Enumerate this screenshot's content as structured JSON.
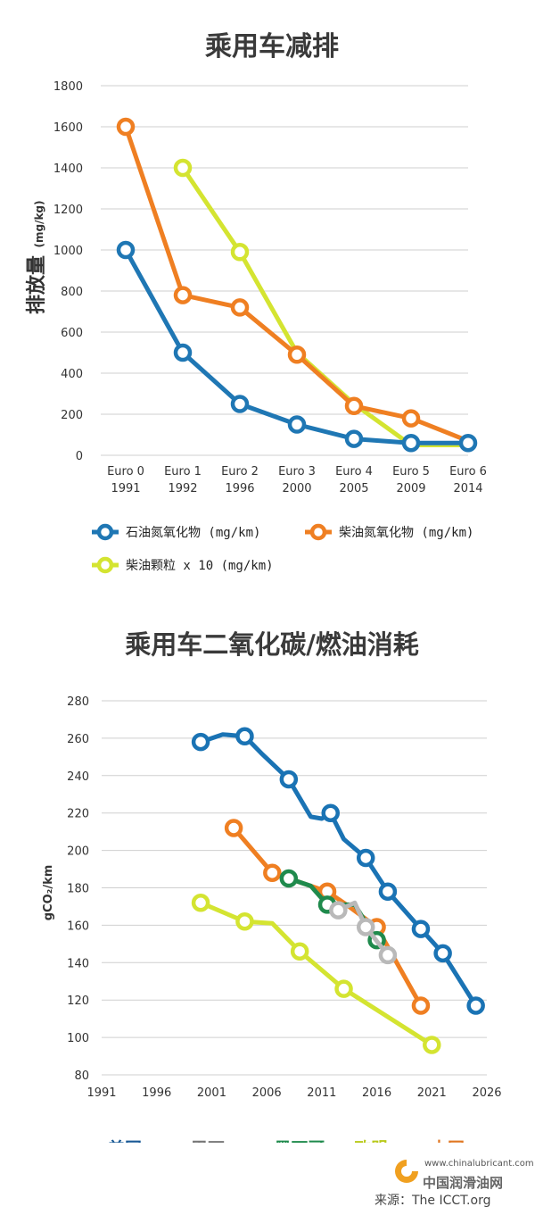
{
  "emissions_chart": {
    "title": "乘用车减排",
    "ylabel": "排放量",
    "ylabel_unit": "(mg/kg)",
    "legend": [
      {
        "label": "石油氮氧化物 (mg/km)",
        "color": "#1f77b4"
      },
      {
        "label": "柴油氮氧化物 (mg/km)",
        "color": "#ef7f22"
      },
      {
        "label": "柴油颗粒 x 10 (mg/km)",
        "color": "#d4e431"
      }
    ]
  },
  "co2_chart": {
    "title": "乘用车二氧化碳/燃油消耗",
    "ylabel": "gCO₂/km"
  },
  "regions": [
    {
      "label": "美国",
      "color": "#1a5a96"
    },
    {
      "label": "巴西",
      "color": "#777777"
    },
    {
      "label": "墨西哥",
      "color": "#1f8a4c"
    },
    {
      "label": "欧盟",
      "color": "#b8c91a"
    },
    {
      "label": "中国",
      "color": "#e07722"
    }
  ],
  "footer": {
    "site": "www.chinalubricant.com",
    "name": "中国润滑油网",
    "source": "来源：The ICCT.org"
  },
  "chart_data": [
    {
      "type": "line",
      "title": "乘用车减排",
      "ylabel": "排放量 (mg/kg)",
      "categories": [
        "Euro 0\n1991",
        "Euro 1\n1992",
        "Euro 2\n1996",
        "Euro 3\n2000",
        "Euro 4\n2005",
        "Euro 5\n2009",
        "Euro 6\n2014"
      ],
      "ylim": [
        0,
        1800
      ],
      "yticks": [
        0,
        200,
        400,
        600,
        800,
        1000,
        1200,
        1400,
        1600,
        1800
      ],
      "grid": true,
      "legend_position": "bottom",
      "series": [
        {
          "name": "石油氮氧化物 (mg/km)",
          "color": "#1f77b4",
          "x": [
            0,
            1,
            2,
            3,
            4,
            5,
            6
          ],
          "values": [
            1000,
            500,
            250,
            150,
            80,
            60,
            60
          ],
          "markers": [
            true,
            true,
            true,
            true,
            true,
            true,
            true
          ]
        },
        {
          "name": "柴油氮氧化物 (mg/km)",
          "color": "#ef7f22",
          "x": [
            0,
            1,
            2,
            3,
            4,
            5,
            6
          ],
          "values": [
            1600,
            780,
            720,
            490,
            240,
            180,
            70
          ],
          "markers": [
            true,
            true,
            true,
            true,
            true,
            true,
            false
          ]
        },
        {
          "name": "柴油颗粒 x 10 (mg/km)",
          "color": "#d4e431",
          "x": [
            1,
            2,
            3,
            4,
            5,
            6
          ],
          "values": [
            1400,
            990,
            500,
            250,
            50,
            50
          ],
          "markers": [
            true,
            true,
            false,
            false,
            false,
            false
          ]
        }
      ]
    },
    {
      "type": "line",
      "title": "乘用车二氧化碳/燃油消耗",
      "ylabel": "gCO₂/km",
      "xlim": [
        1991,
        2026
      ],
      "xticks": [
        1991,
        1996,
        2001,
        2006,
        2011,
        2016,
        2021,
        2026
      ],
      "ylim": [
        80,
        280
      ],
      "yticks": [
        80,
        100,
        120,
        140,
        160,
        180,
        200,
        220,
        240,
        260,
        280
      ],
      "grid": true,
      "legend_position": "bottom",
      "series": [
        {
          "name": "美国",
          "color": "#1a73b4",
          "points": [
            [
              2000,
              258,
              1
            ],
            [
              2002,
              262,
              0
            ],
            [
              2004,
              261,
              1
            ],
            [
              2005.5,
              252,
              0
            ],
            [
              2008,
              238,
              1
            ],
            [
              2010,
              218,
              0
            ],
            [
              2011,
              217,
              0
            ],
            [
              2011.8,
              220,
              1
            ],
            [
              2013,
              206,
              0
            ],
            [
              2015,
              196,
              1
            ],
            [
              2017,
              178,
              1
            ],
            [
              2020,
              158,
              1
            ],
            [
              2022,
              145,
              1
            ],
            [
              2025,
              117,
              1
            ]
          ]
        },
        {
          "name": "中国",
          "color": "#ef7f22",
          "points": [
            [
              2003,
              212,
              1
            ],
            [
              2006.5,
              188,
              1
            ],
            [
              2008,
              185,
              0
            ],
            [
              2011.5,
              178,
              1
            ],
            [
              2013,
              172,
              0
            ],
            [
              2016,
              159,
              1
            ],
            [
              2020,
              117,
              1
            ]
          ]
        },
        {
          "name": "墨西哥",
          "color": "#1f8a4c",
          "points": [
            [
              2008,
              185,
              1
            ],
            [
              2010,
              181,
              0
            ],
            [
              2011.5,
              171,
              1
            ],
            [
              2014,
              171,
              0
            ],
            [
              2016,
              152,
              1
            ]
          ]
        },
        {
          "name": "欧盟",
          "color": "#d4e431",
          "points": [
            [
              2000,
              172,
              1
            ],
            [
              2004,
              162,
              1
            ],
            [
              2006.5,
              161,
              0
            ],
            [
              2009,
              146,
              1
            ],
            [
              2013,
              126,
              1
            ],
            [
              2021,
              96,
              1
            ]
          ]
        },
        {
          "name": "巴西",
          "color": "#b9b9b9",
          "points": [
            [
              2012.5,
              168,
              1
            ],
            [
              2014,
              172,
              0
            ],
            [
              2015,
              159,
              1
            ],
            [
              2017,
              144,
              1
            ]
          ]
        }
      ]
    }
  ]
}
